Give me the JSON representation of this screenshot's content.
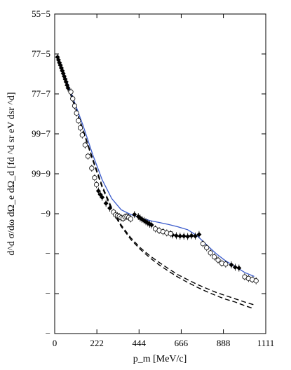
{
  "chart_data": {
    "type": "scatter",
    "title": "",
    "xlabel": "p_m [MeV/c]",
    "ylabel": "d^d σ/dω dΩ_e dΩ_d [fd ^d sr eV dsr ^d]",
    "xlim": [
      0,
      1111
    ],
    "ylim": [
      0,
      8
    ],
    "y_scale": "log",
    "x_ticks": [
      0,
      222,
      444,
      666,
      888,
      1111
    ],
    "x_tick_labels": [
      "0",
      "222",
      "444",
      "666",
      "888",
      "1111"
    ],
    "y_ticks": [
      0,
      1,
      2,
      3,
      4,
      5,
      6,
      7,
      8
    ],
    "y_tick_labels": [
      "−",
      "−",
      "−",
      "−9",
      "99−9",
      "99−7",
      "77−7",
      "77−5",
      "55−5"
    ],
    "grid": false,
    "legend": null,
    "series": [
      {
        "style": "filled-diamond",
        "color": "#000000",
        "points": [
          [
            15,
            6.92
          ],
          [
            20,
            6.85
          ],
          [
            25,
            6.78
          ],
          [
            30,
            6.72
          ],
          [
            35,
            6.65
          ],
          [
            40,
            6.58
          ],
          [
            45,
            6.51
          ],
          [
            50,
            6.44
          ],
          [
            55,
            6.37
          ],
          [
            60,
            6.3
          ],
          [
            65,
            6.22
          ],
          [
            70,
            6.15
          ],
          [
            230,
            3.57
          ],
          [
            240,
            3.48
          ],
          [
            250,
            3.41
          ],
          [
            270,
            3.26
          ],
          [
            290,
            3.14
          ],
          [
            420,
            2.98
          ],
          [
            440,
            2.93
          ],
          [
            450,
            2.89
          ],
          [
            460,
            2.86
          ],
          [
            470,
            2.83
          ],
          [
            480,
            2.8
          ],
          [
            490,
            2.77
          ],
          [
            500,
            2.74
          ],
          [
            510,
            2.72
          ],
          [
            620,
            2.47
          ],
          [
            640,
            2.45
          ],
          [
            660,
            2.44
          ],
          [
            680,
            2.44
          ],
          [
            700,
            2.43
          ],
          [
            720,
            2.45
          ],
          [
            740,
            2.44
          ],
          [
            760,
            2.48
          ],
          [
            930,
            1.72
          ],
          [
            950,
            1.66
          ],
          [
            970,
            1.64
          ]
        ]
      },
      {
        "style": "open-circle",
        "color": "#000000",
        "points": [
          [
            85,
            6.05
          ],
          [
            95,
            5.88
          ],
          [
            105,
            5.7
          ],
          [
            115,
            5.52
          ],
          [
            125,
            5.33
          ],
          [
            135,
            5.15
          ],
          [
            145,
            4.97
          ],
          [
            160,
            4.72
          ],
          [
            175,
            4.44
          ],
          [
            195,
            4.14
          ],
          [
            210,
            3.9
          ],
          [
            220,
            3.73
          ],
          [
            310,
            3.04
          ],
          [
            320,
            2.97
          ],
          [
            330,
            2.95
          ],
          [
            340,
            2.93
          ],
          [
            350,
            2.9
          ],
          [
            360,
            2.88
          ],
          [
            370,
            2.92
          ],
          [
            380,
            2.93
          ],
          [
            390,
            2.91
          ],
          [
            400,
            2.87
          ],
          [
            530,
            2.62
          ],
          [
            550,
            2.58
          ],
          [
            570,
            2.55
          ],
          [
            590,
            2.52
          ],
          [
            610,
            2.5
          ],
          [
            780,
            2.25
          ],
          [
            800,
            2.15
          ],
          [
            820,
            2.02
          ],
          [
            840,
            1.92
          ],
          [
            860,
            1.84
          ],
          [
            880,
            1.76
          ],
          [
            900,
            1.74
          ],
          [
            1000,
            1.42
          ],
          [
            1020,
            1.38
          ],
          [
            1040,
            1.35
          ],
          [
            1060,
            1.32
          ]
        ]
      }
    ],
    "curves": [
      {
        "style": "solid",
        "color": "#3b5ccc",
        "points": [
          [
            15,
            6.95
          ],
          [
            50,
            6.5
          ],
          [
            100,
            5.85
          ],
          [
            150,
            5.2
          ],
          [
            200,
            4.48
          ],
          [
            250,
            3.85
          ],
          [
            300,
            3.38
          ],
          [
            350,
            3.1
          ],
          [
            400,
            2.98
          ],
          [
            450,
            2.9
          ],
          [
            500,
            2.83
          ],
          [
            550,
            2.78
          ],
          [
            600,
            2.73
          ],
          [
            650,
            2.67
          ],
          [
            700,
            2.6
          ],
          [
            750,
            2.45
          ],
          [
            800,
            2.22
          ],
          [
            850,
            2.0
          ],
          [
            900,
            1.82
          ],
          [
            950,
            1.68
          ],
          [
            1000,
            1.53
          ],
          [
            1050,
            1.43
          ]
        ]
      },
      {
        "style": "dashed",
        "color": "#000000",
        "points": [
          [
            15,
            6.9
          ],
          [
            50,
            6.45
          ],
          [
            100,
            5.78
          ],
          [
            150,
            5.1
          ],
          [
            200,
            4.38
          ],
          [
            250,
            3.7
          ],
          [
            300,
            3.15
          ],
          [
            350,
            2.72
          ],
          [
            400,
            2.4
          ],
          [
            450,
            2.15
          ],
          [
            500,
            1.95
          ],
          [
            550,
            1.78
          ],
          [
            600,
            1.62
          ],
          [
            650,
            1.47
          ],
          [
            700,
            1.35
          ],
          [
            750,
            1.23
          ],
          [
            800,
            1.13
          ],
          [
            850,
            1.03
          ],
          [
            900,
            0.95
          ],
          [
            950,
            0.87
          ],
          [
            1000,
            0.79
          ],
          [
            1050,
            0.72
          ]
        ]
      },
      {
        "style": "dashed",
        "color": "#000000",
        "points": [
          [
            15,
            6.88
          ],
          [
            50,
            6.43
          ],
          [
            100,
            5.76
          ],
          [
            150,
            5.07
          ],
          [
            200,
            4.34
          ],
          [
            250,
            3.66
          ],
          [
            300,
            3.1
          ],
          [
            350,
            2.68
          ],
          [
            400,
            2.36
          ],
          [
            450,
            2.11
          ],
          [
            500,
            1.9
          ],
          [
            550,
            1.72
          ],
          [
            600,
            1.56
          ],
          [
            650,
            1.41
          ],
          [
            700,
            1.28
          ],
          [
            750,
            1.16
          ],
          [
            800,
            1.05
          ],
          [
            850,
            0.95
          ],
          [
            900,
            0.86
          ],
          [
            950,
            0.79
          ],
          [
            1000,
            0.7
          ],
          [
            1050,
            0.62
          ]
        ]
      }
    ]
  }
}
